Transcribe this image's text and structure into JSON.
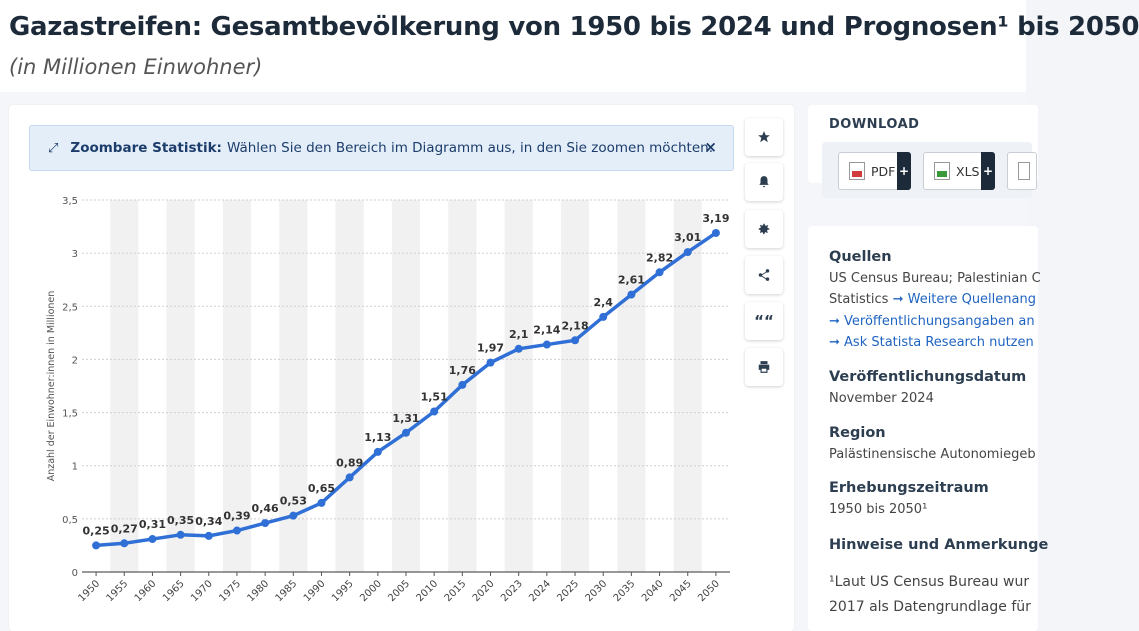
{
  "header": {
    "title": "Gazastreifen: Gesamtbevölkerung von 1950 bis 2024 und Prognosen¹ bis 2050",
    "subtitle": "(in Millionen Einwohner)"
  },
  "zoom_banner": {
    "icon": "expand-icon",
    "bold_label": "Zoombare Statistik:",
    "text": "Wählen Sie den Bereich im Diagramm aus, in den Sie zoomen möchten.",
    "close_label": "×"
  },
  "toolbar": [
    {
      "name": "star-icon"
    },
    {
      "name": "bell-icon"
    },
    {
      "name": "gear-icon"
    },
    {
      "name": "share-icon"
    },
    {
      "name": "quote-icon",
      "label": "““"
    },
    {
      "name": "print-icon"
    }
  ],
  "download": {
    "title": "DOWNLOAD",
    "pdf_label": "PDF",
    "xls_label": "XLS",
    "plus": "+"
  },
  "info": {
    "sources_head": "Quellen",
    "sources_line1": "US Census Bureau; Palestinian C",
    "sources_line2": "Statistics",
    "sources_more": "➞ Weitere Quellenang",
    "link1": "➞ Veröffentlichungsangaben an",
    "link2": "➞ Ask Statista Research nutzen",
    "pubdate_head": "Veröffentlichungsdatum",
    "pubdate": "November 2024",
    "region_head": "Region",
    "region": "Palästinensische Autonomiegeb",
    "period_head": "Erhebungszeitraum",
    "period": "1950 bis 2050¹",
    "notes_head": "Hinweise und Anmerkunge",
    "note_line1": "¹Laut US Census Bureau wur",
    "note_line2": "2017 als Datengrundlage für"
  },
  "chart_data": {
    "type": "line",
    "ylabel": "Anzahl der Einwohner:innen in Millionen",
    "ylim": [
      0,
      3.5
    ],
    "yticks": [
      "0",
      "0,5",
      "1",
      "1,5",
      "2",
      "2,5",
      "3",
      "3,5"
    ],
    "categories": [
      "1950",
      "1955",
      "1960",
      "1965",
      "1970",
      "1975",
      "1980",
      "1985",
      "1990",
      "1995",
      "2000",
      "2005",
      "2010",
      "2015",
      "2020",
      "2023",
      "2024",
      "2025",
      "2030",
      "2035",
      "2040",
      "2045",
      "2050"
    ],
    "values": [
      0.25,
      0.27,
      0.31,
      0.35,
      0.34,
      0.39,
      0.46,
      0.53,
      0.65,
      0.89,
      1.13,
      1.31,
      1.51,
      1.76,
      1.97,
      2.1,
      2.14,
      2.18,
      2.4,
      2.61,
      2.82,
      3.01,
      3.19
    ],
    "labels": [
      "0,25",
      "0,27",
      "0,31",
      "0,35",
      "0,34",
      "0,39",
      "0,46",
      "0,53",
      "0,65",
      "0,89",
      "1,13",
      "1,31",
      "1,51",
      "1,76",
      "1,97",
      "2,1",
      "2,14",
      "2,18",
      "2,4",
      "2,61",
      "2,82",
      "3,01",
      "3,19"
    ],
    "color": "#2f6fd6",
    "grid": true
  }
}
